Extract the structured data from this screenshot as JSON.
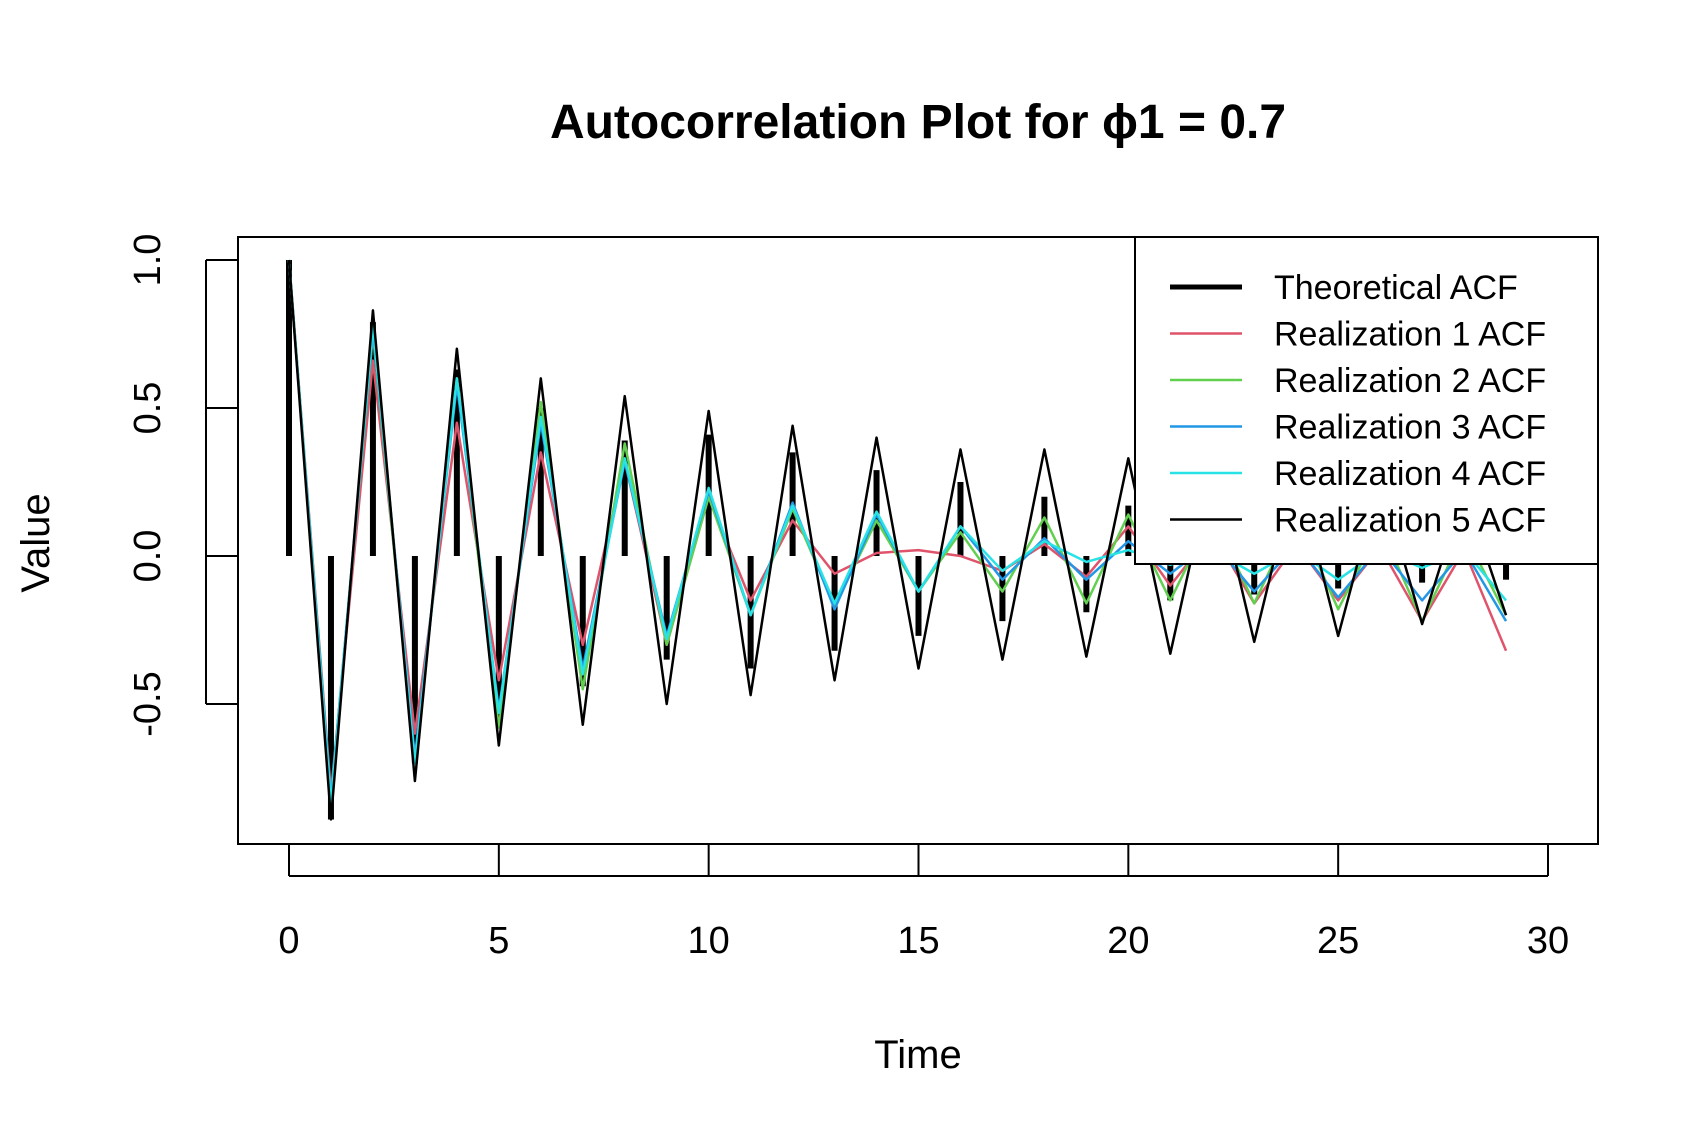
{
  "chart_data": {
    "type": "line",
    "title": "Autocorrelation Plot for ϕ1 = 0.7",
    "xlabel": "Time",
    "ylabel": "Value",
    "xlim": [
      0,
      30
    ],
    "ylim": [
      -0.9,
      1.05
    ],
    "x_ticks": [
      0,
      5,
      10,
      15,
      20,
      25,
      30
    ],
    "y_ticks": [
      -0.5,
      0.0,
      0.5,
      1.0
    ],
    "y_tick_labels": [
      "-0.5",
      "0.0",
      "0.5",
      "1.0"
    ],
    "legend_position": "top-right",
    "grid": false,
    "x": [
      0,
      1,
      2,
      3,
      4,
      5,
      6,
      7,
      8,
      9,
      10,
      11,
      12,
      13,
      14,
      15,
      16,
      17,
      18,
      19,
      20,
      21,
      22,
      23,
      24,
      25,
      26,
      27,
      28,
      29
    ],
    "theoretical": {
      "name": "Theoretical ACF",
      "color": "#000000",
      "values": [
        1.0,
        -0.89,
        0.79,
        -0.7,
        0.63,
        -0.56,
        0.5,
        -0.44,
        0.39,
        -0.35,
        0.41,
        -0.38,
        0.35,
        -0.32,
        0.29,
        -0.27,
        0.25,
        -0.22,
        0.2,
        -0.19,
        0.17,
        -0.15,
        0.14,
        -0.13,
        0.12,
        -0.11,
        0.1,
        -0.09,
        0.09,
        -0.08
      ]
    },
    "series": [
      {
        "name": "Realization 1 ACF",
        "color": "#DF536B",
        "values": [
          1.0,
          -0.8,
          0.66,
          -0.6,
          0.45,
          -0.42,
          0.35,
          -0.3,
          0.32,
          -0.3,
          0.2,
          -0.15,
          0.12,
          -0.06,
          0.01,
          0.02,
          0.0,
          -0.05,
          0.04,
          -0.07,
          0.1,
          -0.1,
          0.08,
          -0.16,
          0.04,
          -0.15,
          0.03,
          -0.22,
          0.02,
          -0.32
        ]
      },
      {
        "name": "Realization 2 ACF",
        "color": "#61D04F",
        "values": [
          1.0,
          -0.82,
          0.75,
          -0.7,
          0.6,
          -0.58,
          0.52,
          -0.45,
          0.38,
          -0.3,
          0.2,
          -0.2,
          0.16,
          -0.17,
          0.12,
          -0.12,
          0.08,
          -0.12,
          0.13,
          -0.16,
          0.14,
          -0.15,
          0.14,
          -0.16,
          0.14,
          -0.18,
          0.1,
          -0.22,
          0.08,
          -0.2
        ]
      },
      {
        "name": "Realization 3 ACF",
        "color": "#2297E6",
        "values": [
          1.0,
          -0.82,
          0.76,
          -0.68,
          0.58,
          -0.52,
          0.45,
          -0.38,
          0.32,
          -0.27,
          0.22,
          -0.2,
          0.18,
          -0.18,
          0.14,
          -0.12,
          0.1,
          -0.08,
          0.06,
          -0.08,
          0.05,
          -0.06,
          0.05,
          -0.12,
          0.04,
          -0.14,
          0.03,
          -0.15,
          0.02,
          -0.22
        ]
      },
      {
        "name": "Realization 4 ACF",
        "color": "#28E2E5",
        "values": [
          1.0,
          -0.84,
          0.78,
          -0.7,
          0.6,
          -0.53,
          0.47,
          -0.4,
          0.33,
          -0.28,
          0.23,
          -0.2,
          0.17,
          -0.16,
          0.15,
          -0.12,
          0.1,
          -0.05,
          0.05,
          -0.02,
          0.02,
          -0.03,
          0.02,
          -0.06,
          0.02,
          -0.08,
          0.02,
          -0.04,
          0.02,
          -0.15
        ]
      },
      {
        "name": "Realization 5 ACF",
        "color": "#000000",
        "values": [
          1.0,
          -0.89,
          0.83,
          -0.76,
          0.7,
          -0.64,
          0.6,
          -0.57,
          0.54,
          -0.5,
          0.49,
          -0.47,
          0.44,
          -0.42,
          0.4,
          -0.38,
          0.36,
          -0.35,
          0.36,
          -0.34,
          0.33,
          -0.33,
          0.31,
          -0.29,
          0.29,
          -0.27,
          0.26,
          -0.23,
          0.22,
          -0.2
        ]
      }
    ]
  }
}
